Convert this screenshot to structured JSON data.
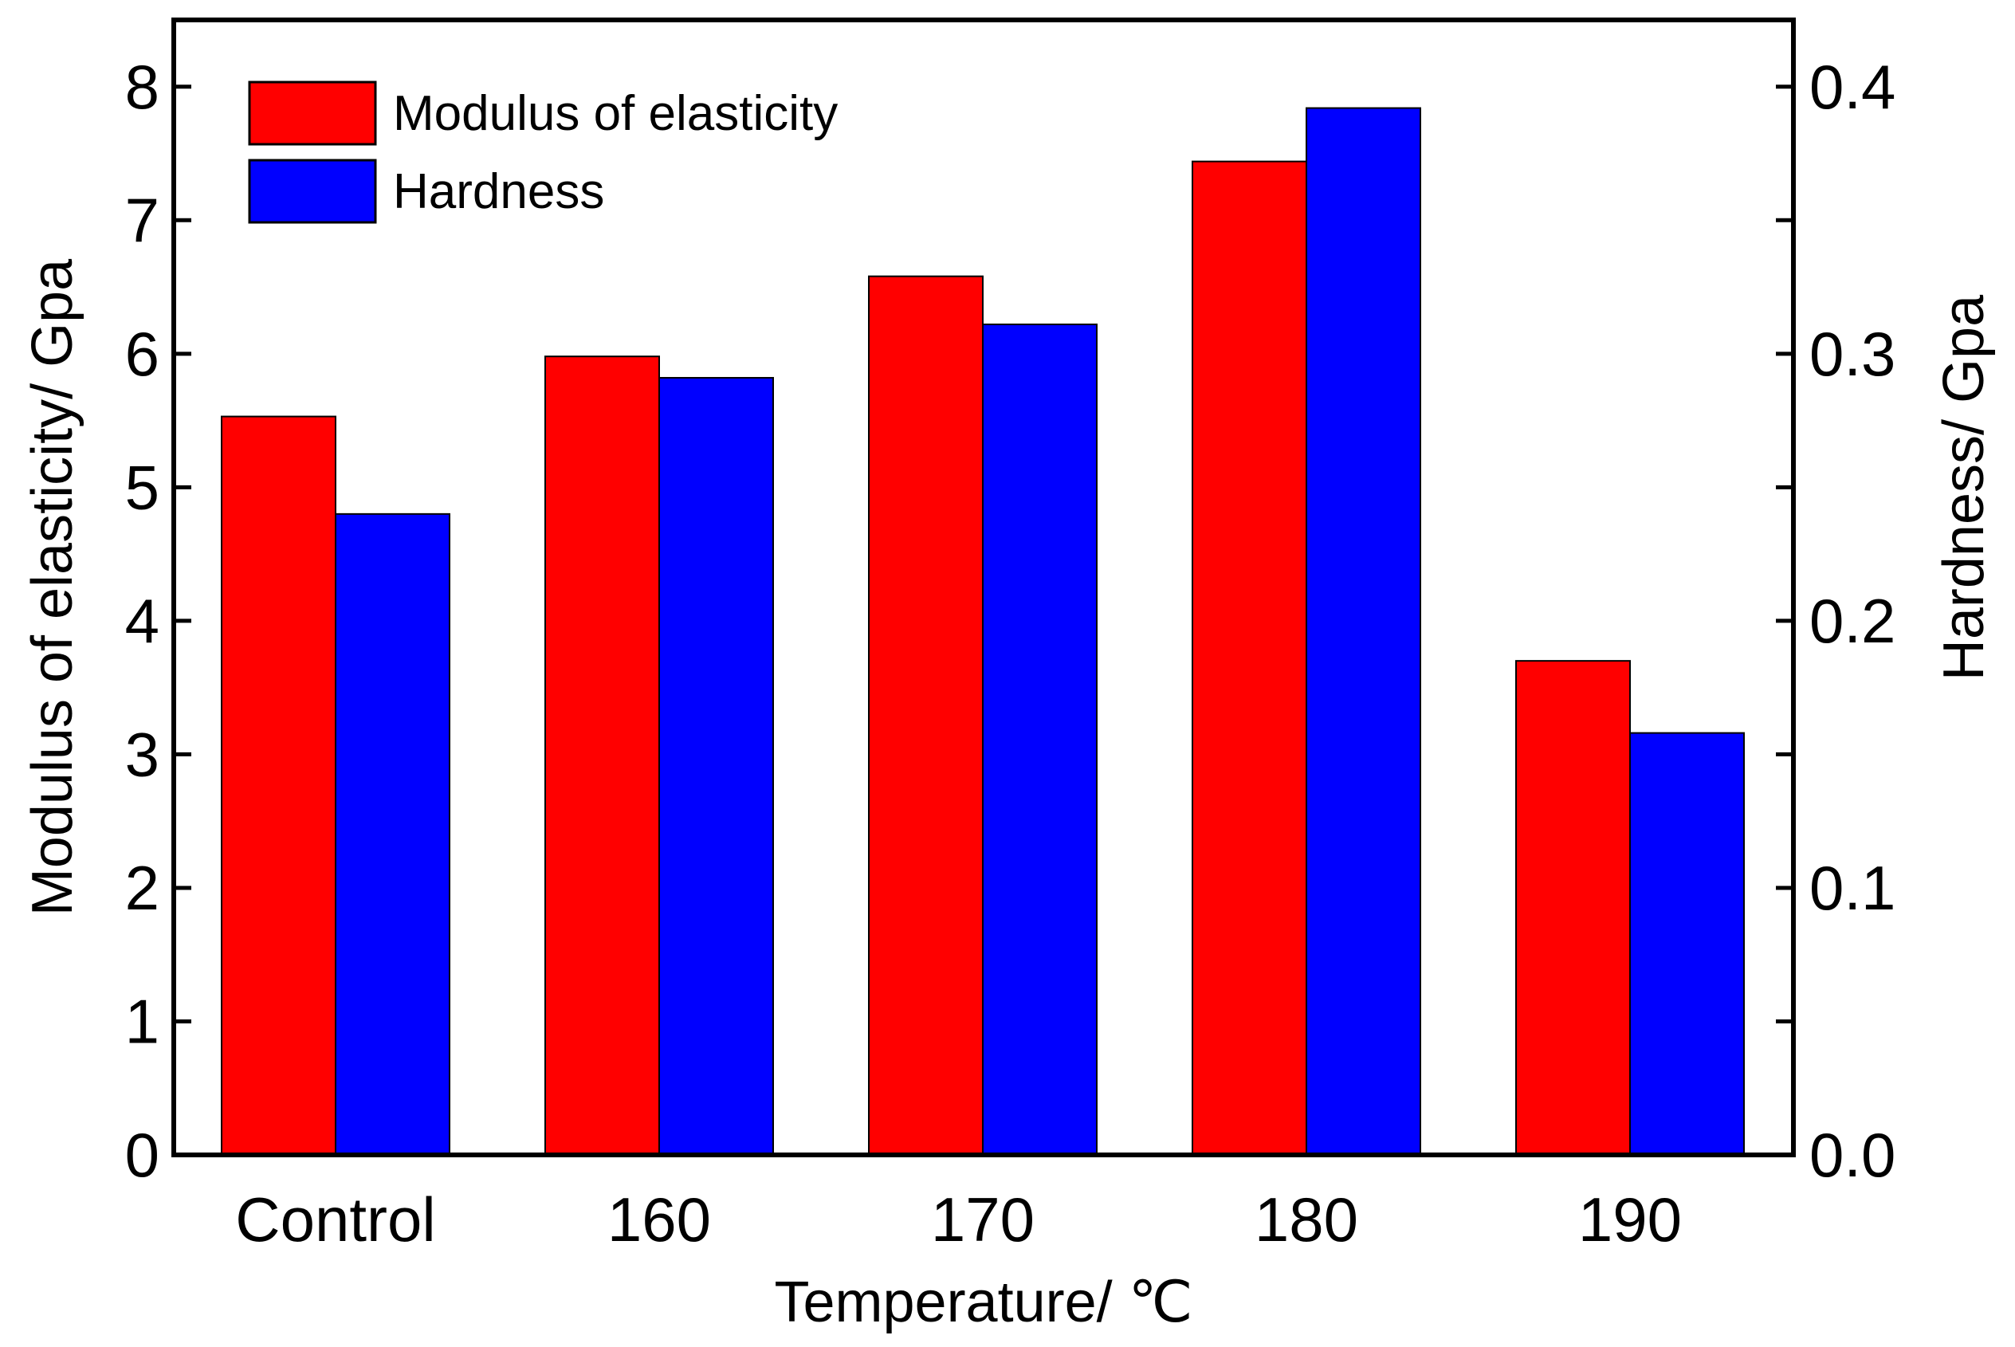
{
  "chart_data": {
    "type": "bar",
    "categories": [
      "Control",
      "160",
      "170",
      "180",
      "190"
    ],
    "series": [
      {
        "name": "Modulus of elasticity",
        "axis": "left",
        "color": "#ff0000",
        "values": [
          5.53,
          5.98,
          6.58,
          7.44,
          3.7
        ]
      },
      {
        "name": "Hardness",
        "axis": "right",
        "color": "#0000ff",
        "values": [
          0.24,
          0.291,
          0.311,
          0.392,
          0.158
        ]
      }
    ],
    "xlabel": "Temperature/ ℃",
    "ylabel_left": "Modulus of elasticity/ Gpa",
    "ylabel_right": "Hardness/ Gpa",
    "ylim_left": [
      0,
      8.5
    ],
    "ylim_right": [
      0,
      0.425
    ],
    "yticks_left": [
      "0",
      "1",
      "2",
      "3",
      "4",
      "5",
      "6",
      "7",
      "8"
    ],
    "yticks_right": [
      "0.0",
      "0.1",
      "0.2",
      "0.3",
      "0.4"
    ],
    "grid": false,
    "legend": {
      "position": "top-left",
      "entries": [
        "Modulus of elasticity",
        "Hardness"
      ]
    }
  }
}
